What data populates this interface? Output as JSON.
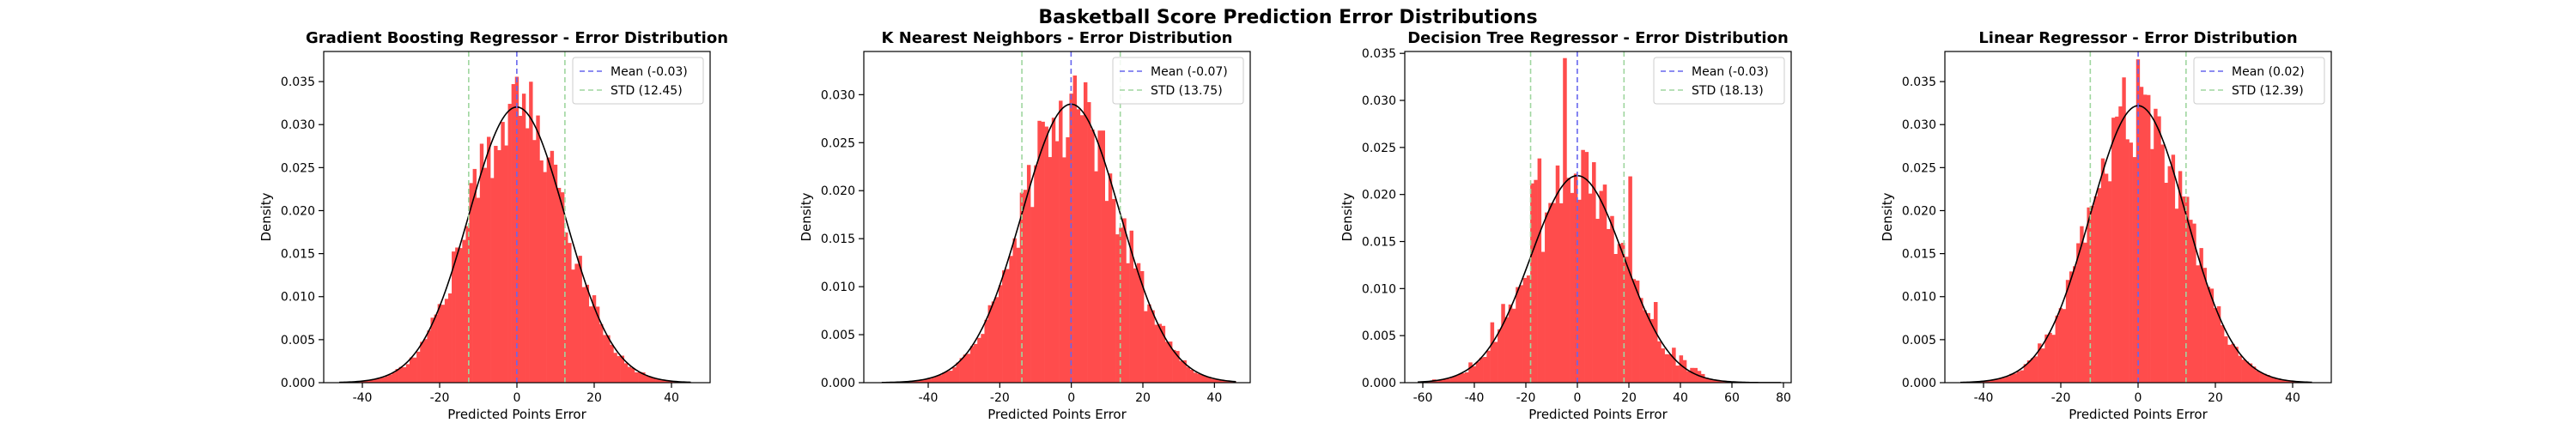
{
  "figure": {
    "title": "Basketball Score Prediction Error Distributions"
  },
  "chart_data": [
    {
      "type": "bar",
      "title": "Gradient Boosting Regressor - Error Distribution",
      "xlabel": "Predicted Points Error",
      "ylabel": "Density",
      "xlim": [
        -50,
        50
      ],
      "ylim": [
        0,
        0.0385
      ],
      "xticks": [
        -40,
        -20,
        0,
        20,
        40
      ],
      "yticks": [
        0.0,
        0.005,
        0.01,
        0.015,
        0.02,
        0.025,
        0.03,
        0.035
      ],
      "ytick_labels": [
        "0.000",
        "0.005",
        "0.010",
        "0.015",
        "0.020",
        "0.025",
        "0.030",
        "0.035"
      ],
      "hist_range": [
        -46,
        45
      ],
      "bins": 100,
      "mean": -0.03,
      "std": 12.45,
      "legend": {
        "placement": "top-right",
        "entries": [
          {
            "label": "Mean (-0.03)",
            "kind": "mean"
          },
          {
            "label": "STD (12.45)",
            "kind": "std"
          }
        ]
      },
      "grid": false,
      "bar_color": "#ff4c4c",
      "mean_color": "#6666ee",
      "std_color": "#9fd69f",
      "curve_color": "#000000"
    },
    {
      "type": "bar",
      "title": "K Nearest Neighbors - Error Distribution",
      "xlabel": "Predicted Points Error",
      "ylabel": "Density",
      "xlim": [
        -58,
        50
      ],
      "ylim": [
        0,
        0.0345
      ],
      "xticks": [
        -40,
        -20,
        0,
        20,
        40
      ],
      "yticks": [
        0.0,
        0.005,
        0.01,
        0.015,
        0.02,
        0.025,
        0.03
      ],
      "ytick_labels": [
        "0.000",
        "0.005",
        "0.010",
        "0.015",
        "0.020",
        "0.025",
        "0.030"
      ],
      "hist_range": [
        -53,
        46
      ],
      "bins": 100,
      "mean": -0.07,
      "std": 13.75,
      "legend": {
        "placement": "top-right",
        "entries": [
          {
            "label": "Mean (-0.07)",
            "kind": "mean"
          },
          {
            "label": "STD (13.75)",
            "kind": "std"
          }
        ]
      },
      "grid": false,
      "bar_color": "#ff4c4c",
      "mean_color": "#6666ee",
      "std_color": "#9fd69f",
      "curve_color": "#000000"
    },
    {
      "type": "bar",
      "title": "Decision Tree Regressor - Error Distribution",
      "xlabel": "Predicted Points Error",
      "ylabel": "Density",
      "xlim": [
        -67,
        83
      ],
      "ylim": [
        0,
        0.0352
      ],
      "xticks": [
        -60,
        -40,
        -20,
        0,
        20,
        40,
        60,
        80
      ],
      "yticks": [
        0.0,
        0.005,
        0.01,
        0.015,
        0.02,
        0.025,
        0.03,
        0.035
      ],
      "ytick_labels": [
        "0.000",
        "0.005",
        "0.010",
        "0.015",
        "0.020",
        "0.025",
        "0.030",
        "0.035"
      ],
      "hist_range": [
        -62,
        79
      ],
      "bins": 100,
      "mean": -0.03,
      "std": 18.13,
      "legend": {
        "placement": "top-right",
        "entries": [
          {
            "label": "Mean (-0.03)",
            "kind": "mean"
          },
          {
            "label": "STD (18.13)",
            "kind": "std"
          }
        ]
      },
      "grid": false,
      "bar_color": "#ff4c4c",
      "mean_color": "#6666ee",
      "std_color": "#9fd69f",
      "curve_color": "#000000"
    },
    {
      "type": "bar",
      "title": "Linear Regressor - Error Distribution",
      "xlabel": "Predicted Points Error",
      "ylabel": "Density",
      "xlim": [
        -50,
        50
      ],
      "ylim": [
        0,
        0.0385
      ],
      "xticks": [
        -40,
        -20,
        0,
        20,
        40
      ],
      "yticks": [
        0.0,
        0.005,
        0.01,
        0.015,
        0.02,
        0.025,
        0.03,
        0.035
      ],
      "ytick_labels": [
        "0.000",
        "0.005",
        "0.010",
        "0.015",
        "0.020",
        "0.025",
        "0.030",
        "0.035"
      ],
      "hist_range": [
        -46,
        45
      ],
      "bins": 100,
      "mean": 0.02,
      "std": 12.39,
      "legend": {
        "placement": "top-right",
        "entries": [
          {
            "label": "Mean (0.02)",
            "kind": "mean"
          },
          {
            "label": "STD (12.39)",
            "kind": "std"
          }
        ]
      },
      "grid": false,
      "bar_color": "#ff4c4c",
      "mean_color": "#6666ee",
      "std_color": "#9fd69f",
      "curve_color": "#000000"
    }
  ]
}
